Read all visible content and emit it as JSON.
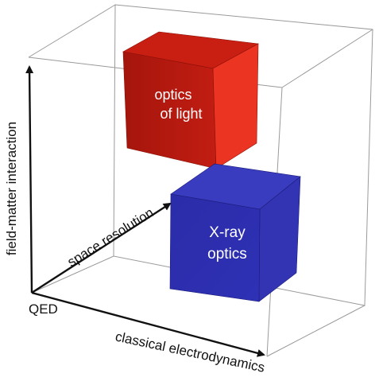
{
  "diagram": {
    "axes": {
      "vertical": "field-matter interaction",
      "depth": "space resolution",
      "horizontal": "classical electrodynamics",
      "origin": "QED"
    },
    "regions": [
      {
        "id": "optics-of-light",
        "lines": [
          "optics",
          "of light"
        ],
        "color": "#d9291b"
      },
      {
        "id": "x-ray-optics",
        "lines": [
          "X-ray",
          "optics"
        ],
        "color": "#2d2fb0"
      }
    ],
    "colors": {
      "frame": "#9a9a9a",
      "axis": "#111111",
      "text_on_box": "#ffffff"
    }
  }
}
